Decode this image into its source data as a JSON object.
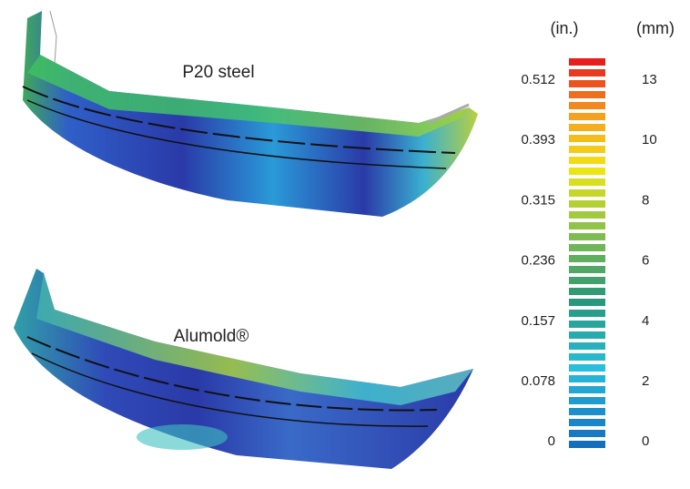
{
  "figures": [
    {
      "label": "P20 steel"
    },
    {
      "label": "Alumold®"
    }
  ],
  "scale": {
    "unit_left": "(in.)",
    "unit_right": "(mm)",
    "inch_labels": [
      "0.512",
      "0.393",
      "0.315",
      "0.236",
      "0.157",
      "0.078",
      "0"
    ],
    "mm_labels": [
      "13",
      "10",
      "8",
      "6",
      "4",
      "2",
      "0"
    ]
  }
}
